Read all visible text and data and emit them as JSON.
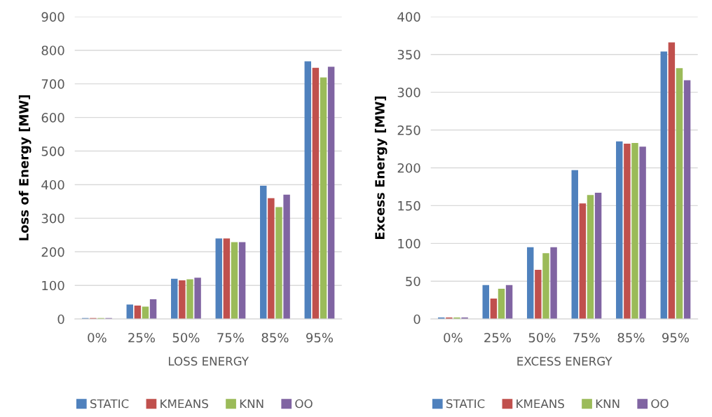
{
  "chart_data": [
    {
      "type": "bar",
      "ylabel": "Loss of Energy [MW]",
      "xlabel": "LOSS ENERGY",
      "categories": [
        "0%",
        "25%",
        "50%",
        "75%",
        "85%",
        "95%"
      ],
      "series": [
        {
          "name": "STATIC",
          "color": "#4f81bd",
          "values": [
            3,
            43,
            120,
            240,
            397,
            767
          ]
        },
        {
          "name": "KMEANS",
          "color": "#c0504d",
          "values": [
            3,
            40,
            115,
            240,
            360,
            748
          ]
        },
        {
          "name": "KNN",
          "color": "#9bbb59",
          "values": [
            3,
            37,
            118,
            229,
            333,
            719
          ]
        },
        {
          "name": "OO",
          "color": "#8064a2",
          "values": [
            3,
            59,
            123,
            229,
            370,
            751
          ]
        }
      ],
      "ylim": [
        0,
        900
      ],
      "yticks": [
        0,
        100,
        200,
        300,
        400,
        500,
        600,
        700,
        800,
        900
      ],
      "grid": "y",
      "legend": "bottom"
    },
    {
      "type": "bar",
      "ylabel": "Excess Energy [MW]",
      "xlabel": "EXCESS ENERGY",
      "categories": [
        "0%",
        "25%",
        "50%",
        "75%",
        "85%",
        "95%"
      ],
      "series": [
        {
          "name": "STATIC",
          "color": "#4f81bd",
          "values": [
            2,
            45,
            95,
            197,
            235,
            354
          ]
        },
        {
          "name": "KMEANS",
          "color": "#c0504d",
          "values": [
            2,
            27,
            65,
            153,
            232,
            366
          ]
        },
        {
          "name": "KNN",
          "color": "#9bbb59",
          "values": [
            2,
            40,
            87,
            164,
            233,
            332
          ]
        },
        {
          "name": "OO",
          "color": "#8064a2",
          "values": [
            2,
            45,
            95,
            167,
            228,
            316
          ]
        }
      ],
      "ylim": [
        0,
        400
      ],
      "yticks": [
        0,
        50,
        100,
        150,
        200,
        250,
        300,
        350,
        400
      ],
      "grid": "y",
      "legend": "bottom"
    }
  ]
}
